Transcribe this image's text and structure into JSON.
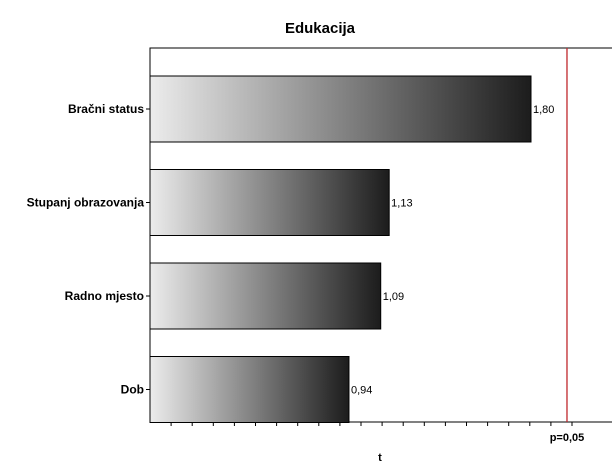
{
  "chart_data": {
    "type": "bar",
    "orientation": "horizontal",
    "title": "Edukacija",
    "xlabel": "t",
    "ylabel": "",
    "categories": [
      "Bračni status",
      "Stupanj obrazovanja",
      "Radno mjesto",
      "Dob"
    ],
    "values": [
      1.8,
      1.13,
      1.09,
      0.94
    ],
    "value_labels": [
      "1,80",
      "1,13",
      "1,09",
      "0,94"
    ],
    "xlim": [
      0,
      2.0
    ],
    "reference_line": {
      "label": "p=0,05",
      "value": 1.97,
      "color": "#c0282d"
    },
    "bar_fill": "gradient light-gray to black",
    "grid": false,
    "legend": "none"
  }
}
